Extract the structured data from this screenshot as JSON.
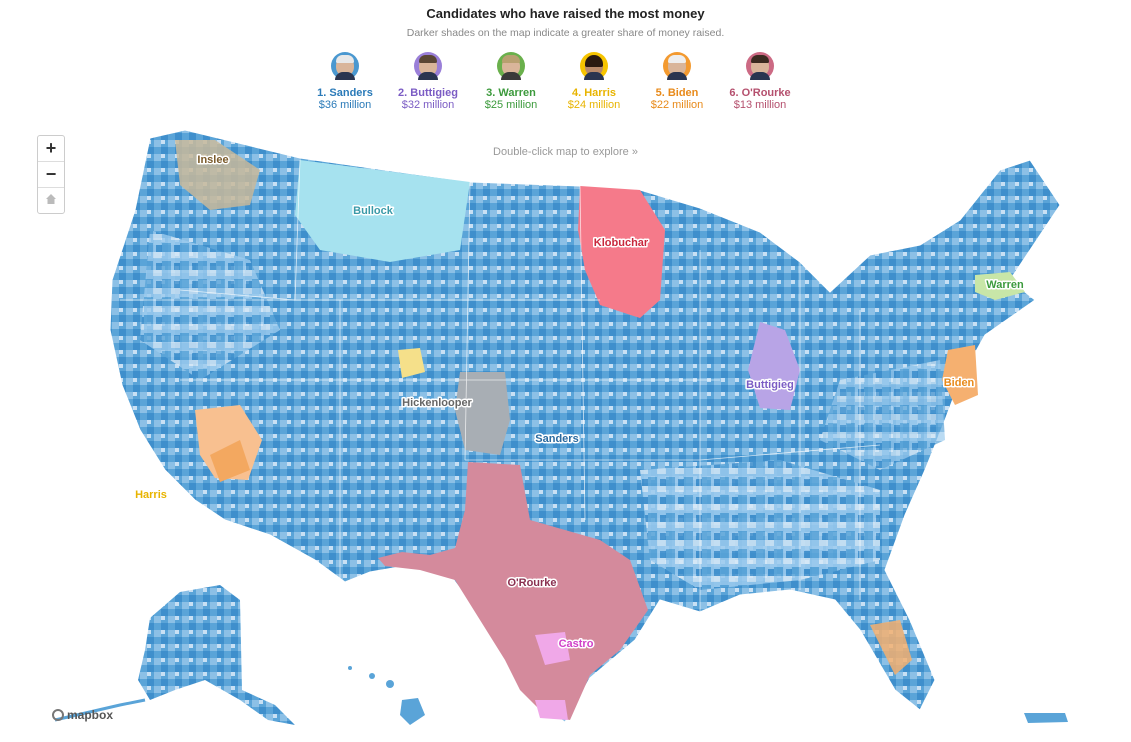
{
  "title": "Candidates who have raised the most money",
  "subtitle": "Darker shades on the map indicate a greater share of money raised.",
  "hint": "Double-click map to explore »",
  "candidates": [
    {
      "name": "1. Sanders",
      "amount": "$36 million",
      "color": "#2a7ab8",
      "ring": "#4a98d0"
    },
    {
      "name": "2. Buttigieg",
      "amount": "$32 million",
      "color": "#7b5cc4",
      "ring": "#9a7fd8"
    },
    {
      "name": "3. Warren",
      "amount": "$25 million",
      "color": "#3c9a3c",
      "ring": "#6ab04c"
    },
    {
      "name": "4. Harris",
      "amount": "$24 million",
      "color": "#e8b400",
      "ring": "#f6c400"
    },
    {
      "name": "5. Biden",
      "amount": "$22 million",
      "color": "#e88a1a",
      "ring": "#f39a30"
    },
    {
      "name": "6. O'Rourke",
      "amount": "$13 million",
      "color": "#b5506e",
      "ring": "#cc6a84"
    }
  ],
  "zoom": {
    "in": "+",
    "out": "−",
    "home_icon": "home-icon"
  },
  "map_labels": {
    "inslee": "Inslee",
    "bullock": "Bullock",
    "klobuchar": "Klobuchar",
    "warren": "Warren",
    "buttigieg": "Buttigieg",
    "biden": "Biden",
    "hickenlooper": "Hickenlooper",
    "sanders": "Sanders",
    "harris": "Harris",
    "orourke": "O'Rourke",
    "castro": "Castro"
  },
  "label_colors": {
    "inslee": "#7a5a2a",
    "bullock": "#3a9aa8",
    "klobuchar": "#c8283c",
    "warren": "#3c9a3c",
    "buttigieg": "#7b5cc4",
    "biden": "#e88a1a",
    "hickenlooper": "#666666",
    "sanders": "#2a6aa0",
    "harris": "#e8b400",
    "orourke": "#8a3050",
    "castro": "#d040c8"
  },
  "attribution": "mapbox",
  "colors": {
    "sanders_blue": "#4a98d0",
    "sanders_light": "#b8d8f0",
    "orourke_pink": "#d48a9c",
    "klobuchar_red": "#f57a8a",
    "bullock_cyan": "#9ee0ee",
    "hickenlooper_gray": "#a8aeb4",
    "buttigieg_purple": "#a890e0",
    "biden_orange": "#f5b070",
    "harris_orange": "#f8c090"
  }
}
